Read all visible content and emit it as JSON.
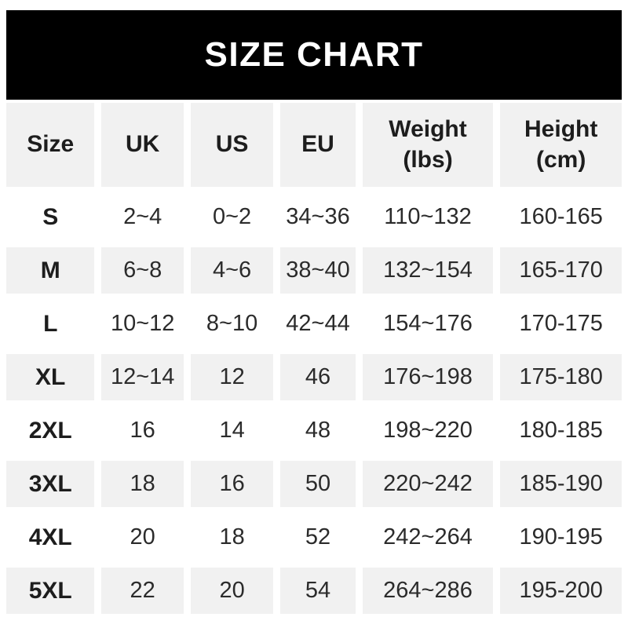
{
  "chart_data": {
    "type": "table",
    "title": "SIZE CHART",
    "columns": [
      {
        "label": "Size"
      },
      {
        "label": "UK"
      },
      {
        "label": "US"
      },
      {
        "label": "EU"
      },
      {
        "label": "Weight",
        "sub": "(lbs)"
      },
      {
        "label": "Height",
        "sub": "(cm)"
      }
    ],
    "rows": [
      {
        "size": "S",
        "uk": "2~4",
        "us": "0~2",
        "eu": "34~36",
        "weight_lbs": "110~132",
        "height_cm": "160-165"
      },
      {
        "size": "M",
        "uk": "6~8",
        "us": "4~6",
        "eu": "38~40",
        "weight_lbs": "132~154",
        "height_cm": "165-170"
      },
      {
        "size": "L",
        "uk": "10~12",
        "us": "8~10",
        "eu": "42~44",
        "weight_lbs": "154~176",
        "height_cm": "170-175"
      },
      {
        "size": "XL",
        "uk": "12~14",
        "us": "12",
        "eu": "46",
        "weight_lbs": "176~198",
        "height_cm": "175-180"
      },
      {
        "size": "2XL",
        "uk": "16",
        "us": "14",
        "eu": "48",
        "weight_lbs": "198~220",
        "height_cm": "180-185"
      },
      {
        "size": "3XL",
        "uk": "18",
        "us": "16",
        "eu": "50",
        "weight_lbs": "220~242",
        "height_cm": "185-190"
      },
      {
        "size": "4XL",
        "uk": "20",
        "us": "18",
        "eu": "52",
        "weight_lbs": "242~264",
        "height_cm": "190-195"
      },
      {
        "size": "5XL",
        "uk": "22",
        "us": "20",
        "eu": "54",
        "weight_lbs": "264~286",
        "height_cm": "195-200"
      }
    ],
    "layout": {
      "alternating_row_pattern": "white, gray, starting with white after header",
      "range_separator_weight": "~",
      "range_separator_height": "-"
    }
  },
  "colors": {
    "banner_bg": "#000000",
    "banner_text": "#ffffff",
    "header_row_bg": "#f1f1f1",
    "alt_row_bg": "#f1f1f1",
    "row_bg": "#ffffff",
    "text": "#2b2b2b",
    "bold_text": "#1d1d1d",
    "page_bg": "#ffffff"
  }
}
